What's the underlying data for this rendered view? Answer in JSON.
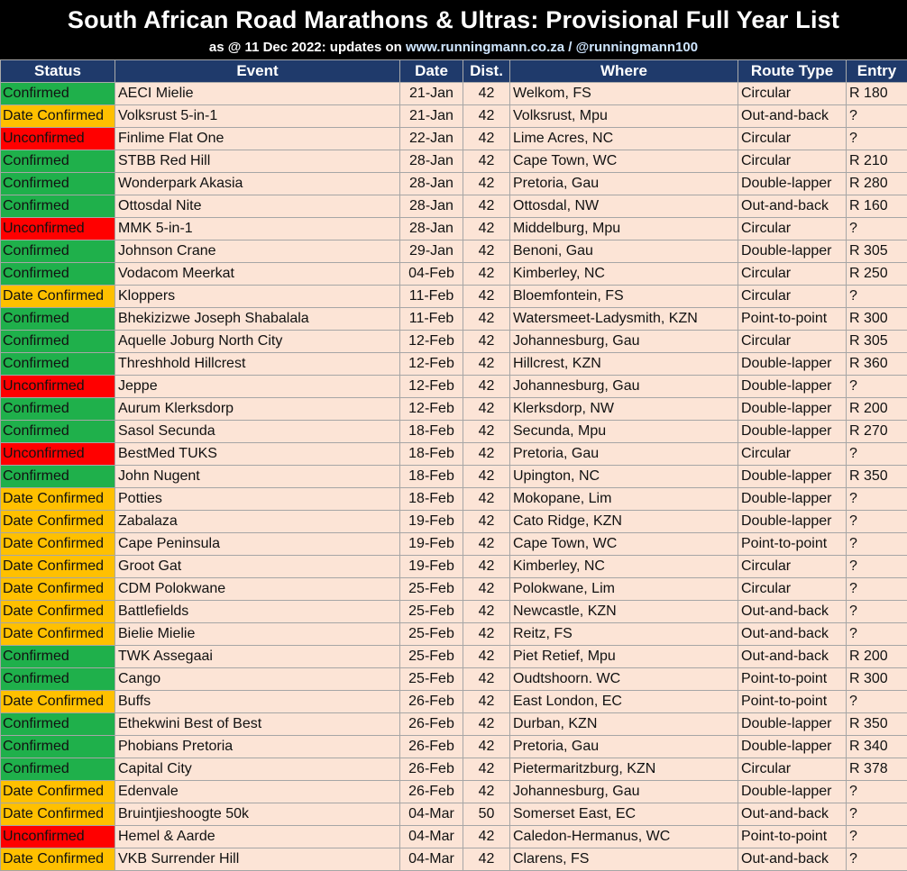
{
  "header": {
    "title": "South African Road Marathons & Ultras: Provisional Full Year List",
    "subtitle_prefix": "as @ 11 Dec 2022: updates on",
    "subtitle_link": "www.runningmann.co.za / @runningmann100"
  },
  "columns": [
    "Status",
    "Event",
    "Date",
    "Dist.",
    "Where",
    "Route Type",
    "Entry"
  ],
  "status_colors": {
    "Confirmed": "#1fb04b",
    "Date Confirmed": "#ffc000",
    "Unconfirmed": "#ff0000"
  },
  "rows": [
    {
      "status": "Confirmed",
      "event": "AECI Mielie",
      "date": "21-Jan",
      "dist": "42",
      "where": "Welkom, FS",
      "route": "Circular",
      "entry": "R 180"
    },
    {
      "status": "Date Confirmed",
      "event": "Volksrust 5-in-1",
      "date": "21-Jan",
      "dist": "42",
      "where": "Volksrust, Mpu",
      "route": "Out-and-back",
      "entry": "?"
    },
    {
      "status": "Unconfirmed",
      "event": "Finlime Flat One",
      "date": "22-Jan",
      "dist": "42",
      "where": "Lime Acres, NC",
      "route": "Circular",
      "entry": "?"
    },
    {
      "status": "Confirmed",
      "event": "STBB Red Hill",
      "date": "28-Jan",
      "dist": "42",
      "where": "Cape Town, WC",
      "route": "Circular",
      "entry": "R 210"
    },
    {
      "status": "Confirmed",
      "event": "Wonderpark Akasia",
      "date": "28-Jan",
      "dist": "42",
      "where": "Pretoria, Gau",
      "route": "Double-lapper",
      "entry": "R 280"
    },
    {
      "status": "Confirmed",
      "event": "Ottosdal Nite",
      "date": "28-Jan",
      "dist": "42",
      "where": "Ottosdal, NW",
      "route": "Out-and-back",
      "entry": "R 160"
    },
    {
      "status": "Unconfirmed",
      "event": "MMK 5-in-1",
      "date": "28-Jan",
      "dist": "42",
      "where": "Middelburg, Mpu",
      "route": "Circular",
      "entry": "?"
    },
    {
      "status": "Confirmed",
      "event": "Johnson Crane",
      "date": "29-Jan",
      "dist": "42",
      "where": "Benoni, Gau",
      "route": "Double-lapper",
      "entry": "R 305"
    },
    {
      "status": "Confirmed",
      "event": "Vodacom Meerkat",
      "date": "04-Feb",
      "dist": "42",
      "where": "Kimberley, NC",
      "route": "Circular",
      "entry": "R 250"
    },
    {
      "status": "Date Confirmed",
      "event": "Kloppers",
      "date": "11-Feb",
      "dist": "42",
      "where": "Bloemfontein, FS",
      "route": "Circular",
      "entry": "?"
    },
    {
      "status": "Confirmed",
      "event": "Bhekizizwe Joseph Shabalala",
      "date": "11-Feb",
      "dist": "42",
      "where": "Watersmeet-Ladysmith, KZN",
      "route": "Point-to-point",
      "entry": "R 300"
    },
    {
      "status": "Confirmed",
      "event": "Aquelle Joburg North City",
      "date": "12-Feb",
      "dist": "42",
      "where": "Johannesburg, Gau",
      "route": "Circular",
      "entry": "R 305"
    },
    {
      "status": "Confirmed",
      "event": "Threshhold Hillcrest",
      "date": "12-Feb",
      "dist": "42",
      "where": "Hillcrest, KZN",
      "route": "Double-lapper",
      "entry": "R 360"
    },
    {
      "status": "Unconfirmed",
      "event": "Jeppe",
      "date": "12-Feb",
      "dist": "42",
      "where": "Johannesburg, Gau",
      "route": "Double-lapper",
      "entry": "?"
    },
    {
      "status": "Confirmed",
      "event": "Aurum Klerksdorp",
      "date": "12-Feb",
      "dist": "42",
      "where": "Klerksdorp, NW",
      "route": "Double-lapper",
      "entry": "R 200"
    },
    {
      "status": "Confirmed",
      "event": "Sasol Secunda",
      "date": "18-Feb",
      "dist": "42",
      "where": "Secunda, Mpu",
      "route": "Double-lapper",
      "entry": "R 270"
    },
    {
      "status": "Unconfirmed",
      "event": "BestMed TUKS",
      "date": "18-Feb",
      "dist": "42",
      "where": "Pretoria, Gau",
      "route": "Circular",
      "entry": "?"
    },
    {
      "status": "Confirmed",
      "event": "John Nugent",
      "date": "18-Feb",
      "dist": "42",
      "where": "Upington, NC",
      "route": "Double-lapper",
      "entry": "R 350"
    },
    {
      "status": "Date Confirmed",
      "event": "Potties",
      "date": "18-Feb",
      "dist": "42",
      "where": "Mokopane, Lim",
      "route": "Double-lapper",
      "entry": "?"
    },
    {
      "status": "Date Confirmed",
      "event": "Zabalaza",
      "date": "19-Feb",
      "dist": "42",
      "where": "Cato Ridge, KZN",
      "route": "Double-lapper",
      "entry": "?"
    },
    {
      "status": "Date Confirmed",
      "event": "Cape Peninsula",
      "date": "19-Feb",
      "dist": "42",
      "where": "Cape Town, WC",
      "route": "Point-to-point",
      "entry": "?"
    },
    {
      "status": "Date Confirmed",
      "event": "Groot Gat",
      "date": "19-Feb",
      "dist": "42",
      "where": "Kimberley, NC",
      "route": "Circular",
      "entry": "?"
    },
    {
      "status": "Date Confirmed",
      "event": "CDM Polokwane",
      "date": "25-Feb",
      "dist": "42",
      "where": "Polokwane, Lim",
      "route": "Circular",
      "entry": "?"
    },
    {
      "status": "Date Confirmed",
      "event": "Battlefields",
      "date": "25-Feb",
      "dist": "42",
      "where": "Newcastle, KZN",
      "route": "Out-and-back",
      "entry": "?"
    },
    {
      "status": "Date Confirmed",
      "event": "Bielie Mielie",
      "date": "25-Feb",
      "dist": "42",
      "where": "Reitz, FS",
      "route": "Out-and-back",
      "entry": "?"
    },
    {
      "status": "Confirmed",
      "event": "TWK Assegaai",
      "date": "25-Feb",
      "dist": "42",
      "where": "Piet Retief, Mpu",
      "route": "Out-and-back",
      "entry": "R 200"
    },
    {
      "status": "Confirmed",
      "event": "Cango",
      "date": "25-Feb",
      "dist": "42",
      "where": "Oudtshoorn. WC",
      "route": "Point-to-point",
      "entry": "R 300"
    },
    {
      "status": "Date Confirmed",
      "event": "Buffs",
      "date": "26-Feb",
      "dist": "42",
      "where": "East London, EC",
      "route": "Point-to-point",
      "entry": "?"
    },
    {
      "status": "Confirmed",
      "event": "Ethekwini Best of Best",
      "date": "26-Feb",
      "dist": "42",
      "where": "Durban, KZN",
      "route": "Double-lapper",
      "entry": "R 350"
    },
    {
      "status": "Confirmed",
      "event": "Phobians Pretoria",
      "date": "26-Feb",
      "dist": "42",
      "where": "Pretoria, Gau",
      "route": "Double-lapper",
      "entry": "R 340"
    },
    {
      "status": "Confirmed",
      "event": "Capital City",
      "date": "26-Feb",
      "dist": "42",
      "where": "Pietermaritzburg, KZN",
      "route": "Circular",
      "entry": "R 378"
    },
    {
      "status": "Date Confirmed",
      "event": "Edenvale",
      "date": "26-Feb",
      "dist": "42",
      "where": "Johannesburg, Gau",
      "route": "Double-lapper",
      "entry": "?"
    },
    {
      "status": "Date Confirmed",
      "event": "Bruintjieshoogte 50k",
      "date": "04-Mar",
      "dist": "50",
      "where": "Somerset East, EC",
      "route": "Out-and-back",
      "entry": "?"
    },
    {
      "status": "Unconfirmed",
      "event": "Hemel & Aarde",
      "date": "04-Mar",
      "dist": "42",
      "where": "Caledon-Hermanus, WC",
      "route": "Point-to-point",
      "entry": "?"
    },
    {
      "status": "Date Confirmed",
      "event": "VKB Surrender Hill",
      "date": "04-Mar",
      "dist": "42",
      "where": "Clarens, FS",
      "route": "Out-and-back",
      "entry": "?"
    }
  ]
}
